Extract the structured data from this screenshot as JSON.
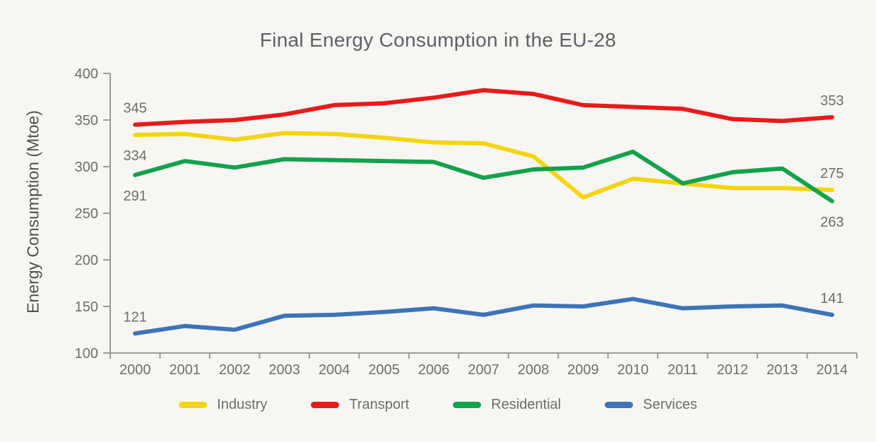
{
  "chart_data": {
    "type": "line",
    "title": "Final Energy Consumption in the EU-28",
    "xlabel": "",
    "ylabel": "Energy Consumption (Mtoe)",
    "ylim": [
      100,
      400
    ],
    "y_ticks": [
      400,
      350,
      300,
      250,
      200,
      150,
      100
    ],
    "x": [
      "2000",
      "2001",
      "2002",
      "2003",
      "2004",
      "2005",
      "2006",
      "2007",
      "2008",
      "2009",
      "2010",
      "2011",
      "2012",
      "2013",
      "2014"
    ],
    "grid": false,
    "legend_position": "bottom",
    "series": [
      {
        "name": "Industry",
        "color": "#f4d40e",
        "values": [
          334,
          335,
          329,
          336,
          335,
          331,
          326,
          325,
          311,
          267,
          287,
          282,
          277,
          277,
          275
        ],
        "start_label": {
          "text": "334",
          "position": "below"
        },
        "end_label": {
          "text": "275",
          "position": "above"
        }
      },
      {
        "name": "Transport",
        "color": "#e81a1a",
        "values": [
          345,
          348,
          350,
          356,
          366,
          368,
          374,
          382,
          378,
          366,
          364,
          362,
          351,
          349,
          353
        ],
        "start_label": {
          "text": "345",
          "position": "above"
        },
        "end_label": {
          "text": "353",
          "position": "above"
        }
      },
      {
        "name": "Residential",
        "color": "#12a24b",
        "values": [
          291,
          306,
          299,
          308,
          307,
          306,
          305,
          288,
          297,
          299,
          316,
          282,
          294,
          298,
          263
        ],
        "start_label": {
          "text": "291",
          "position": "below"
        },
        "end_label": {
          "text": "263",
          "position": "below"
        }
      },
      {
        "name": "Services",
        "color": "#3d74b8",
        "values": [
          121,
          129,
          125,
          140,
          141,
          144,
          148,
          141,
          151,
          150,
          158,
          148,
          150,
          151,
          141
        ],
        "start_label": {
          "text": "121",
          "position": "above"
        },
        "end_label": {
          "text": "141",
          "position": "above"
        }
      }
    ]
  }
}
